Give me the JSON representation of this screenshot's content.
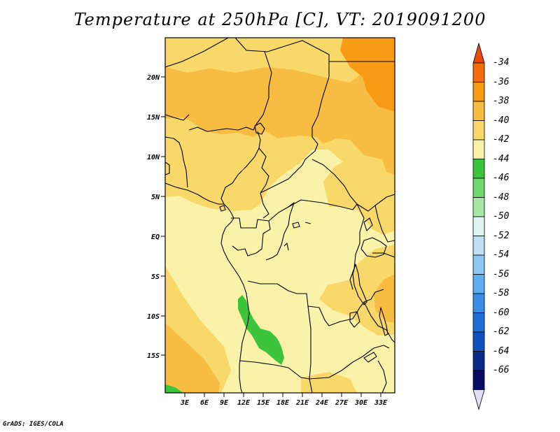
{
  "title": "Temperature at 250hPa [C], VT: 2019091200",
  "footer": "GrADS: IGES/COLA",
  "map": {
    "lat_ticks": [
      "20N",
      "15N",
      "10N",
      "5N",
      "EQ",
      "5S",
      "10S",
      "15S"
    ],
    "lon_ticks": [
      "3E",
      "6E",
      "9E",
      "12E",
      "15E",
      "18E",
      "21E",
      "24E",
      "27E",
      "30E",
      "33E"
    ]
  },
  "colorbar": {
    "labels": [
      "-34",
      "-36",
      "-38",
      "-40",
      "-42",
      "-44",
      "-46",
      "-48",
      "-50",
      "-52",
      "-54",
      "-56",
      "-58",
      "-60",
      "-62",
      "-64",
      "-66"
    ],
    "colors": [
      "#e84a0c",
      "#f36e08",
      "#f79a14",
      "#f7bc42",
      "#f9d86a",
      "#fbf2aa",
      "#3dc43d",
      "#6fd86f",
      "#a6e8a6",
      "#def6f2",
      "#bfe0f4",
      "#8ec8f2",
      "#60aef0",
      "#3a8ee8",
      "#1f6ed6",
      "#1150bf",
      "#0b2a8a",
      "#080c60",
      "#e2dcf4"
    ]
  }
}
